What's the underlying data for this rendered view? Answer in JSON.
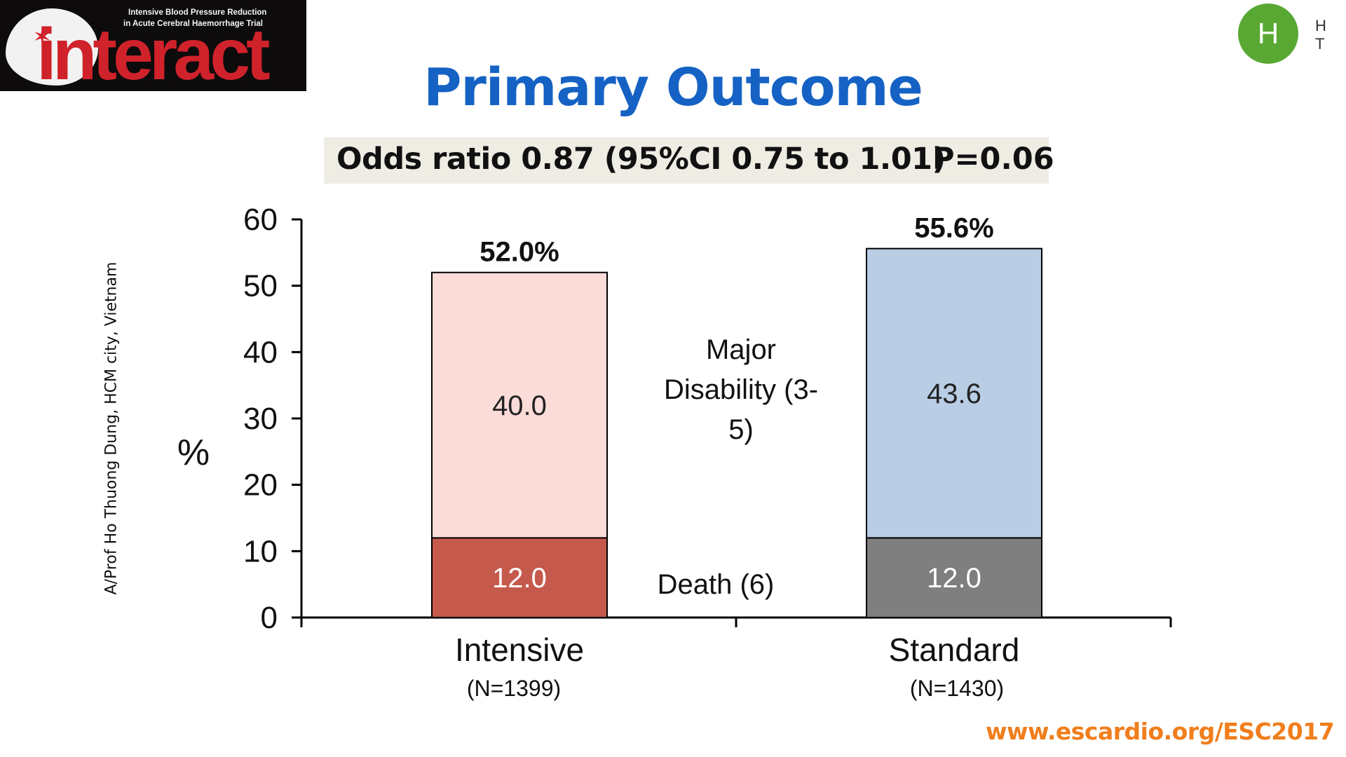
{
  "logo": {
    "tagline_line1": "Intensive Blood Pressure Reduction",
    "tagline_line2": "in Acute Cerebral Haemorrhage Trial",
    "wordmark": "interact"
  },
  "corner": {
    "avatar_letter": "H",
    "text": "H T"
  },
  "slide": {
    "title": "Primary Outcome"
  },
  "odds": {
    "ratio_text": "Odds ratio 0.87 (95%CI 0.75 to 1.01)",
    "p_value": "P=0.06"
  },
  "credit": "A/Prof Ho Thuong Dung, HCM city, Vietnam",
  "footer": {
    "url": "www.escardio.org/",
    "event": "ESC2017"
  },
  "chart_data": {
    "type": "bar",
    "stacked": true,
    "ylabel": "%",
    "ylim": [
      0,
      60
    ],
    "yticks": [
      0,
      10,
      20,
      30,
      40,
      50,
      60
    ],
    "categories": [
      "Intensive",
      "Standard"
    ],
    "category_sublabels": [
      "(N=1399)",
      "(N=1430)"
    ],
    "totals": [
      "52.0%",
      "55.6%"
    ],
    "total_values": [
      52.0,
      55.6
    ],
    "segments": [
      {
        "label": "Death (6)",
        "values": [
          12.0,
          12.0
        ],
        "value_labels": [
          "12.0",
          "12.0"
        ],
        "colors": [
          "#c55a4c",
          "#7f7f7f"
        ],
        "text_color": "#ffffff"
      },
      {
        "label": "Major Disability (3-5)",
        "label_lines": [
          "Major",
          "Disability (3-",
          "5)"
        ],
        "values": [
          40.0,
          43.6
        ],
        "value_labels": [
          "40.0",
          "43.6"
        ],
        "colors": [
          "#fcdcd8",
          "#b9cde5"
        ],
        "text_color": "#222222"
      }
    ]
  }
}
